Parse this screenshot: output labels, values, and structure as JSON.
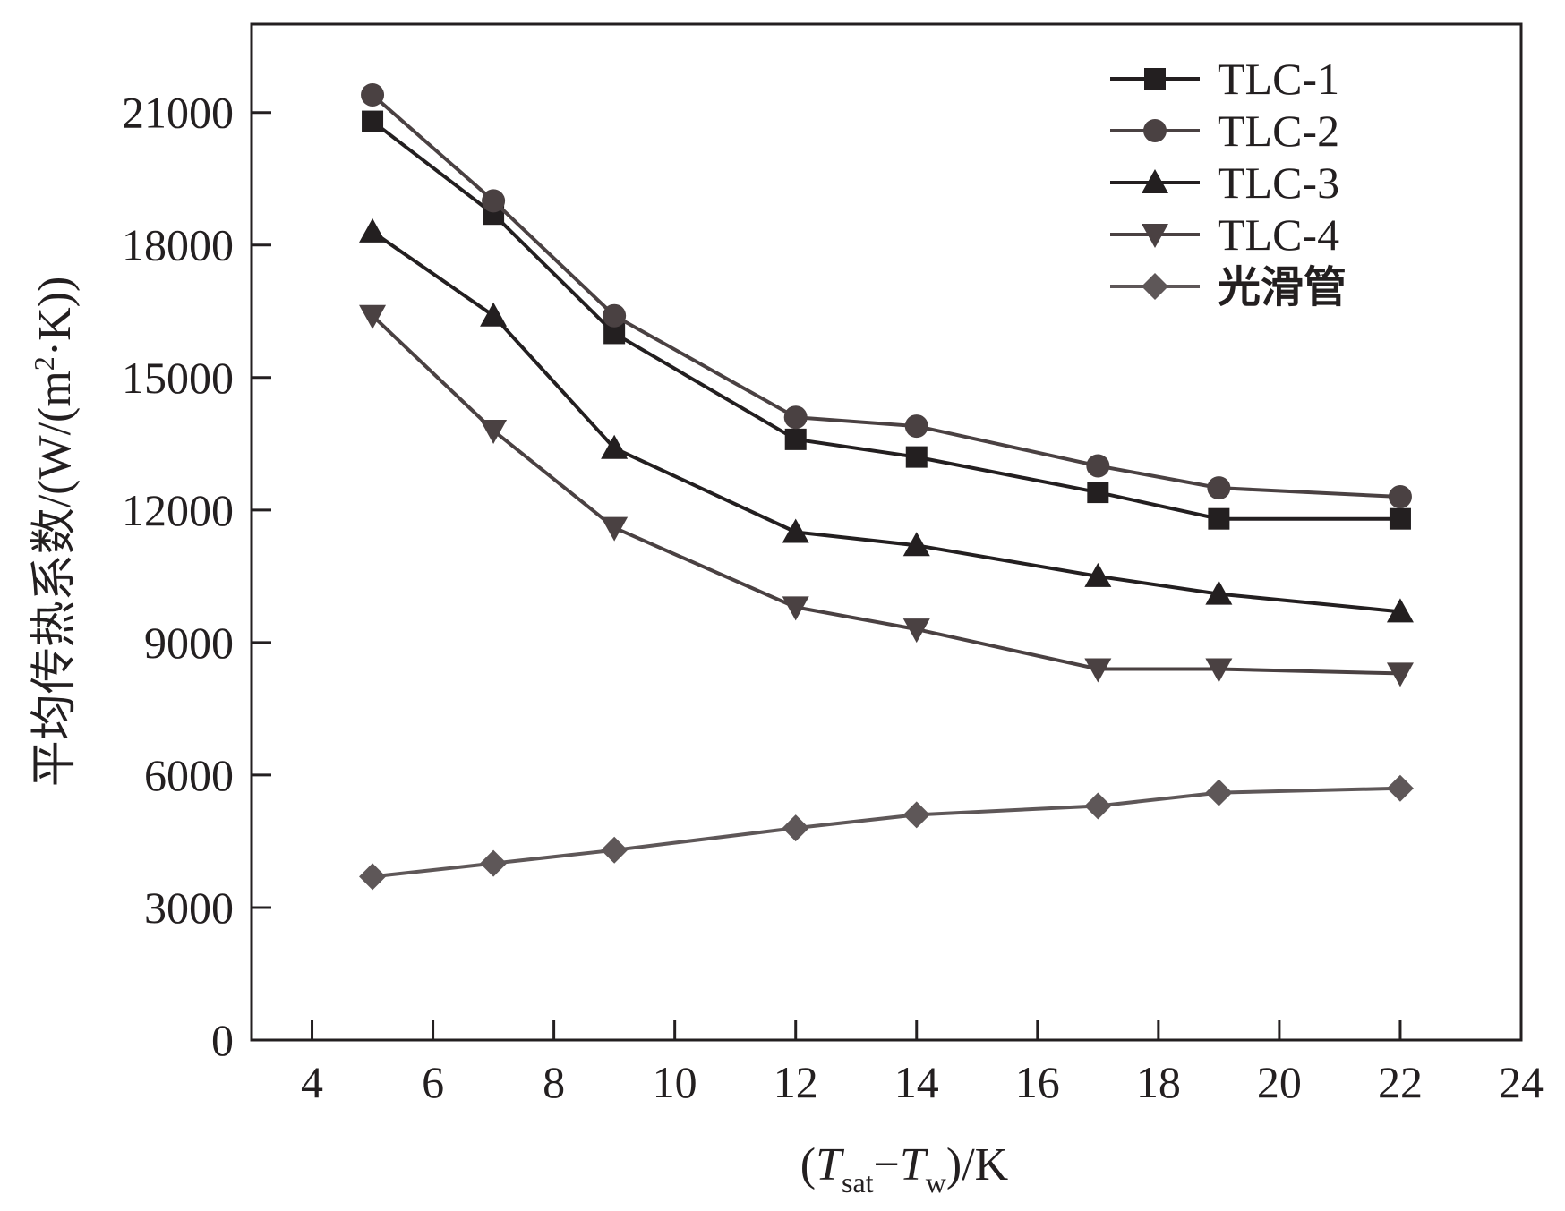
{
  "chart_data": {
    "type": "line",
    "xlabel": {
      "open": "(",
      "T1": "T",
      "sub1": "sat",
      "minus": "−",
      "T2": "T",
      "sub2": "w",
      "close": ")/K"
    },
    "ylabel_parts": {
      "main": "平均传热系数/(W/(m",
      "sup": "2",
      "tail": "·K))"
    },
    "xlim": [
      3,
      24
    ],
    "ylim": [
      0,
      23000
    ],
    "xticks": [
      4,
      6,
      8,
      10,
      12,
      14,
      16,
      18,
      20,
      22,
      24
    ],
    "yticks": [
      0,
      3000,
      6000,
      9000,
      12000,
      15000,
      18000,
      21000
    ],
    "grid": false,
    "legend_position": "top-right",
    "x": [
      5,
      7,
      9,
      12,
      14,
      17,
      19,
      22
    ],
    "series": [
      {
        "name": "TLC-1",
        "marker": "square",
        "color": "#231f20",
        "values": [
          20800,
          18700,
          16000,
          13600,
          13200,
          12400,
          11800,
          11800
        ]
      },
      {
        "name": "TLC-2",
        "marker": "circle",
        "color": "#4a4142",
        "values": [
          21400,
          19000,
          16400,
          14100,
          13900,
          13000,
          12500,
          12300
        ]
      },
      {
        "name": "TLC-3",
        "marker": "triangle-up",
        "color": "#231f20",
        "values": [
          18300,
          16400,
          13400,
          11500,
          11200,
          10500,
          10100,
          9700
        ]
      },
      {
        "name": "TLC-4",
        "marker": "triangle-down",
        "color": "#4a4142",
        "values": [
          16400,
          13800,
          11600,
          9800,
          9300,
          8400,
          8400,
          8300
        ]
      },
      {
        "name": "光滑管",
        "marker": "diamond",
        "color": "#5e5758",
        "values": [
          3700,
          4000,
          4300,
          4800,
          5100,
          5300,
          5600,
          5700
        ]
      }
    ]
  }
}
